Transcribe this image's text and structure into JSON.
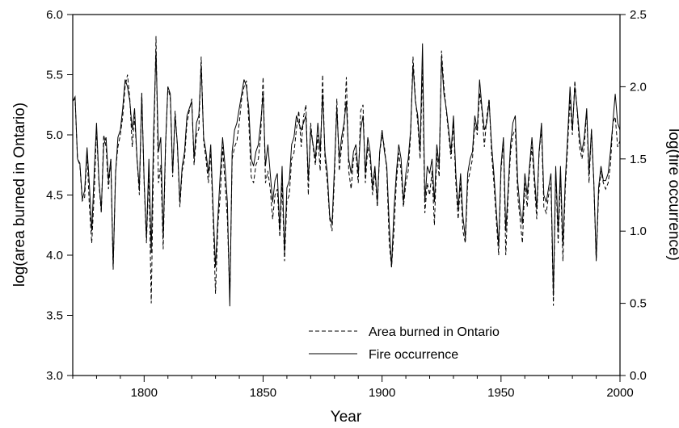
{
  "chart_data": {
    "type": "line",
    "xlabel": "Year",
    "ylabel_left": "log(area burned in Ontario)",
    "ylabel_right": "log(fire occurrence)",
    "xlim": [
      1770,
      2000
    ],
    "ylim_left": [
      3.0,
      6.0
    ],
    "ylim_right": [
      0.0,
      2.5
    ],
    "x_ticks": [
      1800,
      1850,
      1900,
      1950,
      2000
    ],
    "x_ticks_minor": [
      1770,
      1780,
      1790,
      1810,
      1820,
      1830,
      1840,
      1860,
      1870,
      1880,
      1890,
      1910,
      1920,
      1930,
      1940,
      1960,
      1970,
      1980,
      1990
    ],
    "y_ticks_left": [
      "3.0",
      "3.5",
      "4.0",
      "4.5",
      "5.0",
      "5.5",
      "6.0"
    ],
    "y_ticks_right": [
      "0.0",
      "0.5",
      "1.0",
      "1.5",
      "2.0",
      "2.5"
    ],
    "grid": false,
    "legend_position": "bottom-center",
    "line_color": "#000000",
    "series": [
      {
        "name": "Area burned in Ontario",
        "axis": "left",
        "style": "dashed",
        "x_start": 1770,
        "x_step": 1,
        "values": [
          5.28,
          5.3,
          4.8,
          4.75,
          4.45,
          4.48,
          4.85,
          4.4,
          4.1,
          4.5,
          5.05,
          4.6,
          4.35,
          5.0,
          4.9,
          4.55,
          4.8,
          3.88,
          4.7,
          4.9,
          5.0,
          5.15,
          5.4,
          5.5,
          5.3,
          4.9,
          5.15,
          4.8,
          4.5,
          5.35,
          4.6,
          4.1,
          4.7,
          3.6,
          4.85,
          5.82,
          4.6,
          4.75,
          4.05,
          4.9,
          5.4,
          5.3,
          4.65,
          5.2,
          4.9,
          4.4,
          4.7,
          4.8,
          5.1,
          5.2,
          5.3,
          4.75,
          5.0,
          5.05,
          5.65,
          4.95,
          4.8,
          4.6,
          4.85,
          4.3,
          3.68,
          4.25,
          4.5,
          4.9,
          4.6,
          4.3,
          3.65,
          4.8,
          4.9,
          4.95,
          5.1,
          5.3,
          5.4,
          5.45,
          5.1,
          4.65,
          4.6,
          4.75,
          4.8,
          5.0,
          5.48,
          4.6,
          4.7,
          4.55,
          4.3,
          4.5,
          4.55,
          4.15,
          4.6,
          3.95,
          4.45,
          4.5,
          4.8,
          4.85,
          5.05,
          5.2,
          4.9,
          5.15,
          5.25,
          4.5,
          5.1,
          4.9,
          4.75,
          5.0,
          4.7,
          5.5,
          4.8,
          4.6,
          4.3,
          4.2,
          4.65,
          5.3,
          4.7,
          4.9,
          5.05,
          5.48,
          4.7,
          4.55,
          4.8,
          4.85,
          4.6,
          5.2,
          5.25,
          4.6,
          4.9,
          4.8,
          4.5,
          4.7,
          4.4,
          4.85,
          5.0,
          4.9,
          4.7,
          4.1,
          3.9,
          4.2,
          4.6,
          4.85,
          4.7,
          4.4,
          4.6,
          4.7,
          5.0,
          5.65,
          5.3,
          5.1,
          4.8,
          5.55,
          4.35,
          4.6,
          4.5,
          4.7,
          4.25,
          4.85,
          4.65,
          5.7,
          5.4,
          5.2,
          5.0,
          4.8,
          5.1,
          4.6,
          4.3,
          4.6,
          4.2,
          4.1,
          4.6,
          4.7,
          4.8,
          5.1,
          5.0,
          5.35,
          5.2,
          4.9,
          5.15,
          5.3,
          4.85,
          4.6,
          4.3,
          4.0,
          4.7,
          4.95,
          4.0,
          4.5,
          4.85,
          5.0,
          5.05,
          4.5,
          4.3,
          4.1,
          4.6,
          4.4,
          4.7,
          4.9,
          4.6,
          4.3,
          4.85,
          5.05,
          4.4,
          4.35,
          4.5,
          4.6,
          3.58,
          4.7,
          4.1,
          4.65,
          3.95,
          4.55,
          4.9,
          5.3,
          5.0,
          5.45,
          5.2,
          4.9,
          4.8,
          4.9,
          5.2,
          4.6,
          5.05,
          4.6,
          3.95,
          4.5,
          4.7,
          4.6,
          4.55,
          4.6,
          4.75,
          5.1,
          5.15,
          4.9,
          4.95
        ]
      },
      {
        "name": "Fire occurrence",
        "axis": "right",
        "style": "solid",
        "x_start": 1770,
        "x_step": 1,
        "values": [
          1.9,
          1.93,
          1.5,
          1.47,
          1.22,
          1.28,
          1.58,
          1.32,
          1.0,
          1.4,
          1.75,
          1.35,
          1.15,
          1.6,
          1.65,
          1.35,
          1.5,
          0.75,
          1.4,
          1.65,
          1.7,
          1.85,
          2.05,
          2.0,
          1.9,
          1.7,
          1.85,
          1.5,
          1.3,
          1.95,
          1.35,
          0.95,
          1.5,
          0.85,
          1.7,
          2.25,
          1.55,
          1.65,
          0.95,
          1.6,
          2.0,
          1.95,
          1.4,
          1.8,
          1.6,
          1.2,
          1.45,
          1.55,
          1.8,
          1.85,
          1.9,
          1.5,
          1.75,
          1.8,
          2.15,
          1.65,
          1.55,
          1.4,
          1.6,
          1.15,
          0.75,
          1.1,
          1.4,
          1.65,
          1.45,
          1.2,
          0.48,
          1.55,
          1.7,
          1.75,
          1.85,
          1.95,
          2.05,
          2.0,
          1.85,
          1.5,
          1.45,
          1.55,
          1.6,
          1.75,
          1.95,
          1.45,
          1.6,
          1.4,
          1.2,
          1.35,
          1.4,
          1.0,
          1.45,
          0.85,
          1.3,
          1.35,
          1.6,
          1.65,
          1.8,
          1.75,
          1.7,
          1.75,
          1.8,
          1.35,
          1.7,
          1.6,
          1.5,
          1.75,
          1.55,
          1.95,
          1.55,
          1.4,
          1.1,
          1.05,
          1.45,
          1.85,
          1.5,
          1.65,
          1.75,
          1.9,
          1.5,
          1.4,
          1.55,
          1.6,
          1.4,
          1.7,
          1.8,
          1.4,
          1.65,
          1.55,
          1.3,
          1.45,
          1.2,
          1.55,
          1.7,
          1.55,
          1.45,
          1.05,
          0.75,
          1.15,
          1.4,
          1.6,
          1.5,
          1.2,
          1.4,
          1.5,
          1.7,
          2.15,
          1.9,
          1.8,
          1.55,
          2.3,
          1.2,
          1.45,
          1.4,
          1.5,
          1.2,
          1.6,
          1.45,
          2.2,
          1.95,
          1.85,
          1.7,
          1.55,
          1.8,
          1.4,
          1.15,
          1.4,
          1.1,
          0.95,
          1.4,
          1.5,
          1.55,
          1.8,
          1.7,
          2.05,
          1.85,
          1.7,
          1.75,
          1.9,
          1.6,
          1.4,
          1.15,
          0.9,
          1.45,
          1.65,
          1.0,
          1.3,
          1.6,
          1.75,
          1.8,
          1.35,
          1.15,
          1.05,
          1.4,
          1.25,
          1.45,
          1.65,
          1.4,
          1.15,
          1.55,
          1.75,
          1.25,
          1.2,
          1.3,
          1.4,
          0.55,
          1.45,
          1.0,
          1.45,
          0.9,
          1.35,
          1.65,
          2.0,
          1.7,
          2.0,
          1.85,
          1.65,
          1.55,
          1.65,
          1.85,
          1.4,
          1.7,
          1.35,
          0.8,
          1.3,
          1.45,
          1.35,
          1.35,
          1.4,
          1.55,
          1.75,
          1.95,
          1.75,
          1.7
        ]
      }
    ]
  }
}
